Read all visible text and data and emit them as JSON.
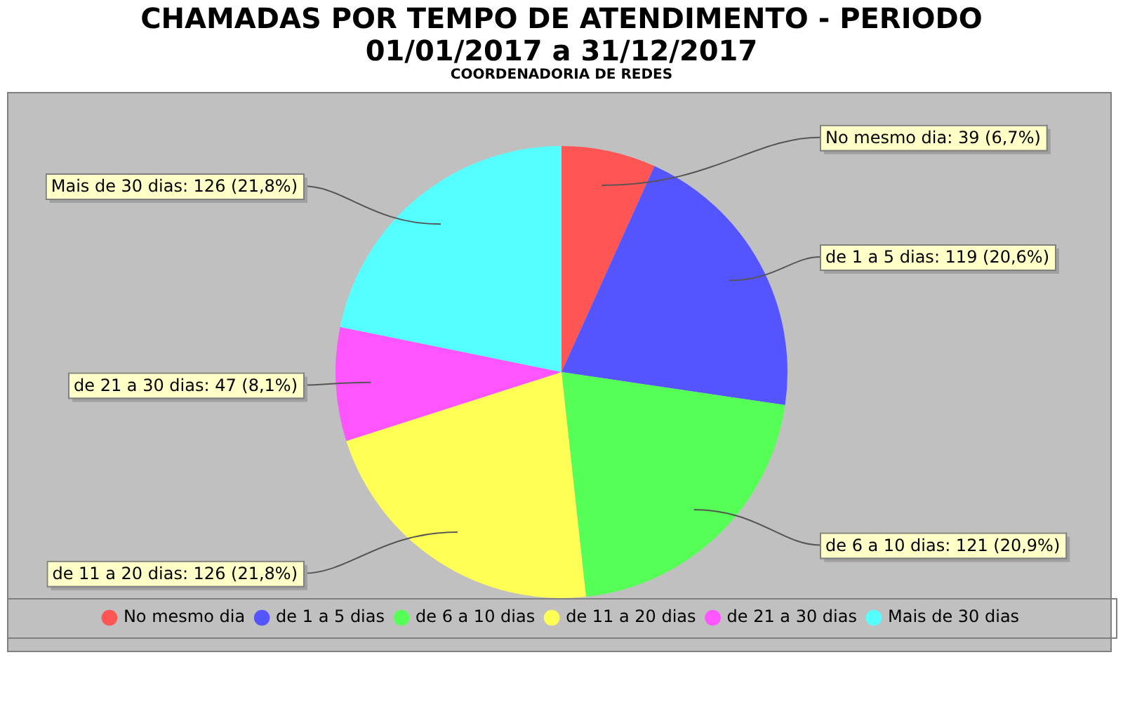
{
  "chart_data": {
    "type": "pie",
    "title": "CHAMADAS POR TEMPO DE ATENDIMENTO - PERIODO 01/01/2017 a 31/12/2017",
    "subtitle": "COORDENADORIA DE REDES",
    "categories": [
      "No mesmo dia",
      "de 1 a 5 dias",
      "de 6 a 10 dias",
      "de 11 a 20 dias",
      "de 21 a 30 dias",
      "Mais de 30 dias"
    ],
    "values": [
      39,
      119,
      121,
      126,
      47,
      126
    ],
    "colors": [
      "#ff5555",
      "#5555ff",
      "#55ff55",
      "#ffff55",
      "#ff55ff",
      "#55ffff"
    ],
    "value_labels": [
      "No mesmo dia: 39 (6,7%)",
      "de 1 a 5 dias: 119 (20,6%)",
      "de 6 a 10 dias: 121 (20,9%)",
      "de 11 a 20 dias: 126 (21,8%)",
      "de 21 a 30 dias: 47 (8,1%)",
      "Mais de 30 dias: 126 (21,8%)"
    ],
    "legend": "bottom"
  }
}
